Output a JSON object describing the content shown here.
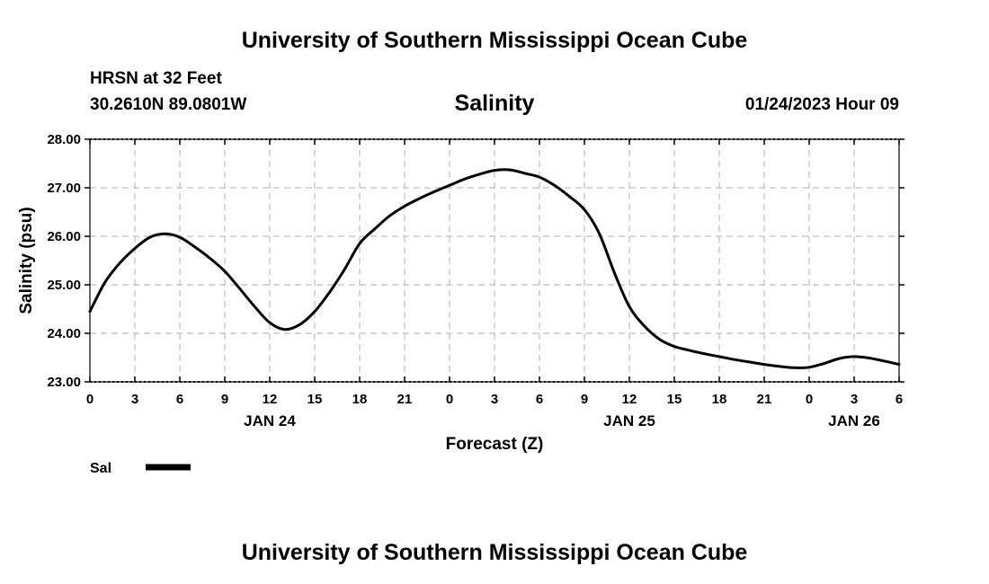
{
  "header": {
    "title": "University of Southern Mississippi Ocean Cube",
    "station": "HRSN at 32 Feet",
    "coordinates": "30.2610N  89.0801W",
    "run_time": "01/24/2023 Hour 09"
  },
  "footer": {
    "title": "University of Southern Mississippi Ocean Cube"
  },
  "chart_data": {
    "type": "line",
    "title": "Salinity",
    "xlabel": "Forecast (Z)",
    "ylabel": "Salinity (psu)",
    "x_unit": "forecast hours from 00Z JAN 24",
    "xlim": [
      0,
      54
    ],
    "ylim": [
      23.0,
      28.0
    ],
    "grid": true,
    "x_ticks": [
      0,
      3,
      6,
      9,
      12,
      15,
      18,
      21,
      24,
      27,
      30,
      33,
      36,
      39,
      42,
      45,
      48,
      51,
      54
    ],
    "x_tick_labels": [
      "0",
      "3",
      "6",
      "9",
      "12",
      "15",
      "18",
      "21",
      "0",
      "3",
      "6",
      "9",
      "12",
      "15",
      "18",
      "21",
      "0",
      "3",
      "6"
    ],
    "y_ticks": [
      23.0,
      24.0,
      25.0,
      26.0,
      27.0,
      28.0
    ],
    "y_tick_labels": [
      "23.00",
      "24.00",
      "25.00",
      "26.00",
      "27.00",
      "28.00"
    ],
    "date_labels": [
      {
        "x": 12,
        "label": "JAN 24"
      },
      {
        "x": 36,
        "label": "JAN 25"
      },
      {
        "x": 51,
        "label": "JAN 26"
      }
    ],
    "legend": {
      "label": "Sal",
      "position": "bottom-left"
    },
    "series": [
      {
        "name": "Sal",
        "color": "#000000",
        "x": [
          0,
          1,
          2,
          3,
          4,
          5,
          6,
          7,
          8,
          9,
          10,
          11,
          12,
          13,
          14,
          15,
          16,
          17,
          18,
          19,
          20,
          21,
          22,
          23,
          24,
          25,
          26,
          27,
          28,
          29,
          30,
          31,
          32,
          33,
          34,
          35,
          36,
          37,
          38,
          39,
          40,
          41,
          42,
          43,
          44,
          45,
          46,
          47,
          48,
          49,
          50,
          51,
          52,
          53,
          54
        ],
        "values": [
          24.45,
          25.05,
          25.45,
          25.75,
          25.98,
          26.05,
          25.98,
          25.78,
          25.55,
          25.28,
          24.92,
          24.55,
          24.22,
          24.08,
          24.18,
          24.45,
          24.85,
          25.32,
          25.85,
          26.15,
          26.42,
          26.62,
          26.78,
          26.92,
          27.05,
          27.18,
          27.28,
          27.36,
          27.37,
          27.3,
          27.22,
          27.05,
          26.82,
          26.55,
          26.05,
          25.25,
          24.55,
          24.15,
          23.88,
          23.73,
          23.65,
          23.58,
          23.52,
          23.46,
          23.41,
          23.36,
          23.32,
          23.29,
          23.3,
          23.38,
          23.48,
          23.52,
          23.49,
          23.43,
          23.36
        ]
      }
    ]
  }
}
